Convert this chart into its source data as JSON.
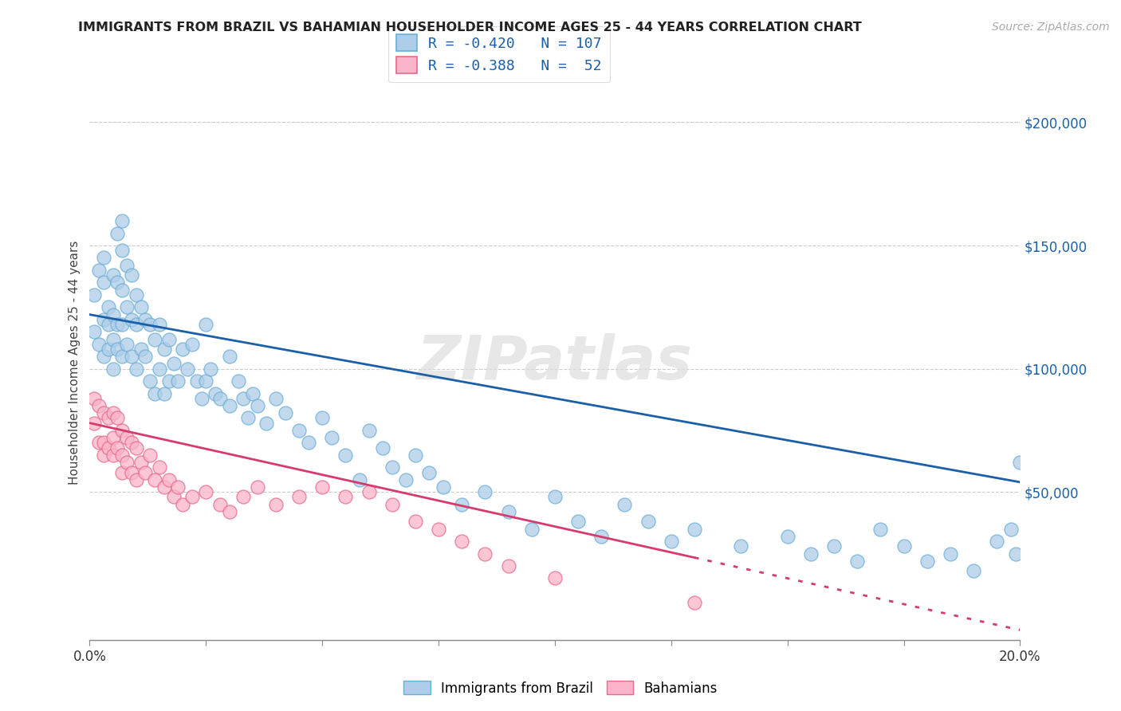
{
  "title": "IMMIGRANTS FROM BRAZIL VS BAHAMIAN HOUSEHOLDER INCOME AGES 25 - 44 YEARS CORRELATION CHART",
  "source": "Source: ZipAtlas.com",
  "ylabel": "Householder Income Ages 25 - 44 years",
  "xlim": [
    0.0,
    0.2
  ],
  "ylim": [
    -10000,
    215000
  ],
  "ytick_labels": [
    "$50,000",
    "$100,000",
    "$150,000",
    "$200,000"
  ],
  "ytick_values": [
    50000,
    100000,
    150000,
    200000
  ],
  "xtick_values": [
    0.0,
    0.025,
    0.05,
    0.075,
    0.1,
    0.125,
    0.15,
    0.175,
    0.2
  ],
  "xtick_labels": [
    "0.0%",
    "",
    "",
    "",
    "",
    "",
    "",
    "",
    "20.0%"
  ],
  "series1_face": "#aecde8",
  "series1_edge": "#6baed6",
  "series2_face": "#fbb4c9",
  "series2_edge": "#e8698a",
  "line1_color": "#1a5fa8",
  "line2_color": "#d63b6e",
  "watermark": "ZIPatlas",
  "brazil_intercept": 122000,
  "brazil_slope": -340000,
  "bahamas_intercept": 78000,
  "bahamas_slope": -420000,
  "brazil_x": [
    0.001,
    0.001,
    0.002,
    0.002,
    0.003,
    0.003,
    0.003,
    0.003,
    0.004,
    0.004,
    0.004,
    0.005,
    0.005,
    0.005,
    0.005,
    0.006,
    0.006,
    0.006,
    0.006,
    0.007,
    0.007,
    0.007,
    0.007,
    0.007,
    0.008,
    0.008,
    0.008,
    0.009,
    0.009,
    0.009,
    0.01,
    0.01,
    0.01,
    0.011,
    0.011,
    0.012,
    0.012,
    0.013,
    0.013,
    0.014,
    0.014,
    0.015,
    0.015,
    0.016,
    0.016,
    0.017,
    0.017,
    0.018,
    0.019,
    0.02,
    0.021,
    0.022,
    0.023,
    0.024,
    0.025,
    0.025,
    0.026,
    0.027,
    0.028,
    0.03,
    0.03,
    0.032,
    0.033,
    0.034,
    0.035,
    0.036,
    0.038,
    0.04,
    0.042,
    0.045,
    0.047,
    0.05,
    0.052,
    0.055,
    0.058,
    0.06,
    0.063,
    0.065,
    0.068,
    0.07,
    0.073,
    0.076,
    0.08,
    0.085,
    0.09,
    0.095,
    0.1,
    0.105,
    0.11,
    0.115,
    0.12,
    0.125,
    0.13,
    0.14,
    0.15,
    0.155,
    0.16,
    0.165,
    0.17,
    0.175,
    0.18,
    0.185,
    0.19,
    0.195,
    0.198,
    0.199,
    0.2
  ],
  "brazil_y": [
    130000,
    115000,
    140000,
    110000,
    145000,
    120000,
    105000,
    135000,
    125000,
    108000,
    118000,
    138000,
    112000,
    122000,
    100000,
    155000,
    135000,
    118000,
    108000,
    160000,
    148000,
    132000,
    118000,
    105000,
    142000,
    125000,
    110000,
    138000,
    120000,
    105000,
    130000,
    118000,
    100000,
    125000,
    108000,
    120000,
    105000,
    118000,
    95000,
    112000,
    90000,
    118000,
    100000,
    108000,
    90000,
    112000,
    95000,
    102000,
    95000,
    108000,
    100000,
    110000,
    95000,
    88000,
    118000,
    95000,
    100000,
    90000,
    88000,
    105000,
    85000,
    95000,
    88000,
    80000,
    90000,
    85000,
    78000,
    88000,
    82000,
    75000,
    70000,
    80000,
    72000,
    65000,
    55000,
    75000,
    68000,
    60000,
    55000,
    65000,
    58000,
    52000,
    45000,
    50000,
    42000,
    35000,
    48000,
    38000,
    32000,
    45000,
    38000,
    30000,
    35000,
    28000,
    32000,
    25000,
    28000,
    22000,
    35000,
    28000,
    22000,
    25000,
    18000,
    30000,
    35000,
    25000,
    62000
  ],
  "bahamas_x": [
    0.001,
    0.001,
    0.002,
    0.002,
    0.003,
    0.003,
    0.003,
    0.004,
    0.004,
    0.005,
    0.005,
    0.005,
    0.006,
    0.006,
    0.007,
    0.007,
    0.007,
    0.008,
    0.008,
    0.009,
    0.009,
    0.01,
    0.01,
    0.011,
    0.012,
    0.013,
    0.014,
    0.015,
    0.016,
    0.017,
    0.018,
    0.019,
    0.02,
    0.022,
    0.025,
    0.028,
    0.03,
    0.033,
    0.036,
    0.04,
    0.045,
    0.05,
    0.055,
    0.06,
    0.065,
    0.07,
    0.075,
    0.08,
    0.085,
    0.09,
    0.1,
    0.13
  ],
  "bahamas_y": [
    88000,
    78000,
    85000,
    70000,
    82000,
    70000,
    65000,
    80000,
    68000,
    82000,
    72000,
    65000,
    80000,
    68000,
    75000,
    65000,
    58000,
    72000,
    62000,
    70000,
    58000,
    68000,
    55000,
    62000,
    58000,
    65000,
    55000,
    60000,
    52000,
    55000,
    48000,
    52000,
    45000,
    48000,
    50000,
    45000,
    42000,
    48000,
    52000,
    45000,
    48000,
    52000,
    48000,
    50000,
    45000,
    38000,
    35000,
    30000,
    25000,
    20000,
    15000,
    5000
  ]
}
